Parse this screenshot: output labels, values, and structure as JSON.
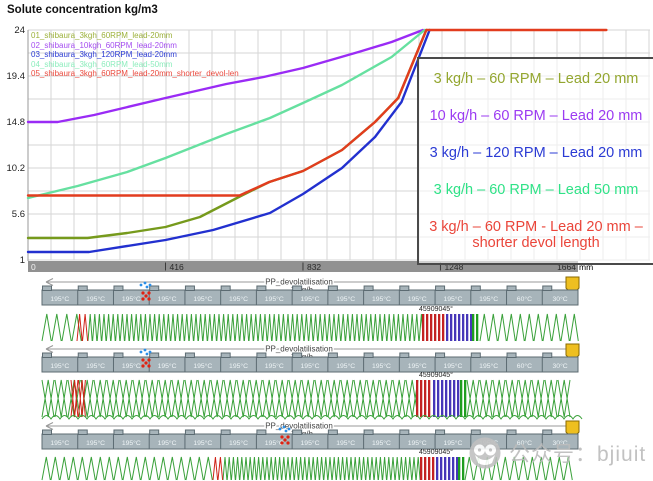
{
  "chart": {
    "title": "Solute concentration kg/m3",
    "y_tick_labels": [
      "24",
      "19.4",
      "14.8",
      "10.2",
      "5.6",
      "1"
    ],
    "x_tick_labels": [
      "0",
      "416",
      "832",
      "1248",
      "1664"
    ],
    "x_unit": "mm",
    "inline_legend": [
      {
        "label": "01_shibaura_3kgh_60RPM_lead-20mm",
        "color": "#9cb13a"
      },
      {
        "label": "02_shibaura_10kgh_60RPM_lead-20mm",
        "color": "#a44df0"
      },
      {
        "label": "03_shibaura_3kgh_120RPM_lead-20mm",
        "color": "#2b3bd4"
      },
      {
        "label": "04_shibaura_3kgh_60RPM_lead-50mm",
        "color": "#8dedbd"
      },
      {
        "label": "05_shibaura_3kgh_60RPM_lead-20mm_shorter_devol-len",
        "color": "#ea4a3e"
      }
    ],
    "legend_box_entries": [
      {
        "label": "3 kg/h – 60 RPM – Lead 20 mm",
        "color": "#93a62f"
      },
      {
        "label": "10 kg/h – 60 RPM – Lead 20 mm",
        "color": "#9b3bf2"
      },
      {
        "label": "3 kg/h – 120 RPM – Lead 20 mm",
        "color": "#2b3bd4"
      },
      {
        "label": "3 kg/h – 60 RPM – Lead 50 mm",
        "color": "#2fe287"
      },
      {
        "label": "3 kg/h – 60 RPM - Lead 20 mm – shorter devol length",
        "color": "#ea453a"
      }
    ],
    "chart_data": {
      "type": "line",
      "title": "Solute concentration kg/m3",
      "ylabel": "Solute concentration kg/m3",
      "xlabel": "",
      "x_unit": "mm",
      "xlim": [
        0,
        1780
      ],
      "ylim": [
        1,
        24
      ],
      "grid": true,
      "legend_position": "right-overlay-box",
      "series": [
        {
          "name": "01_shibaura_3kgh_60RPM_lead-20mm",
          "color": "#769a1c",
          "points": [
            [
              0,
              3.2
            ],
            [
              180,
              3.2
            ],
            [
              300,
              3.7
            ],
            [
              416,
              4.3
            ],
            [
              520,
              5.3
            ],
            [
              650,
              7.5
            ],
            [
              730,
              8.8
            ],
            [
              832,
              9.9
            ],
            [
              950,
              12.0
            ],
            [
              1050,
              14.8
            ],
            [
              1120,
              17.2
            ],
            [
              1205,
              24
            ]
          ]
        },
        {
          "name": "02_shibaura_10kgh_60RPM_lead-20mm",
          "color": "#9a2bf5",
          "points": [
            [
              0,
              14.8
            ],
            [
              90,
              14.8
            ],
            [
              200,
              15.5
            ],
            [
              416,
              17.2
            ],
            [
              600,
              18.6
            ],
            [
              713,
              19.3
            ],
            [
              832,
              20.2
            ],
            [
              1000,
              21.8
            ],
            [
              1100,
              22.8
            ],
            [
              1195,
              24
            ]
          ]
        },
        {
          "name": "03_shibaura_3kgh_120RPM_lead-20mm",
          "color": "#2230cf",
          "points": [
            [
              0,
              1.8
            ],
            [
              185,
              1.8
            ],
            [
              416,
              3.0
            ],
            [
              560,
              4.0
            ],
            [
              732,
              5.7
            ],
            [
              832,
              7.6
            ],
            [
              950,
              10.2
            ],
            [
              1050,
              13.3
            ],
            [
              1130,
              16.8
            ],
            [
              1215,
              24
            ]
          ]
        },
        {
          "name": "04_shibaura_3kgh_60RPM_lead-50mm",
          "color": "#66e0a0",
          "points": [
            [
              0,
              7.2
            ],
            [
              150,
              8.4
            ],
            [
              300,
              9.8
            ],
            [
              416,
              11.2
            ],
            [
              600,
              13.6
            ],
            [
              732,
              15.2
            ],
            [
              832,
              16.7
            ],
            [
              950,
              18.5
            ],
            [
              1100,
              21.3
            ],
            [
              1200,
              24
            ]
          ]
        },
        {
          "name": "05_shibaura_3kgh_60RPM_lead-20mm_shorter_devol-len",
          "color": "#e23c1e",
          "points": [
            [
              0,
              7.45
            ],
            [
              640,
              7.45
            ],
            [
              730,
              8.8
            ],
            [
              832,
              9.9
            ],
            [
              950,
              12.0
            ],
            [
              1050,
              14.8
            ],
            [
              1120,
              17.2
            ],
            [
              1205,
              24
            ],
            [
              1750,
              24
            ]
          ]
        }
      ]
    }
  },
  "diagrams": {
    "rows": [
      {
        "flow_label": "PP_devolatilisation",
        "rate_label": "3 kg/h",
        "kneading_label": "45909045°",
        "barrel_temps": [
          "195°C",
          "195°C",
          "195°C",
          "195°C",
          "195°C",
          "195°C",
          "195°C",
          "195°C",
          "195°C",
          "195°C",
          "195°C",
          "195°C",
          "195°C",
          "60°C",
          "30°C"
        ]
      },
      {
        "flow_label": "PP_devolatilisation",
        "rate_label": "3 kg/h",
        "kneading_label": "45909045°",
        "barrel_temps": [
          "195°C",
          "195°C",
          "195°C",
          "195°C",
          "195°C",
          "195°C",
          "195°C",
          "195°C",
          "195°C",
          "195°C",
          "195°C",
          "195°C",
          "195°C",
          "60°C",
          "30°C"
        ]
      },
      {
        "flow_label": "PP_devolatilisation",
        "rate_label": "3 kg/h",
        "kneading_label": "45909045°",
        "barrel_temps": [
          "195°C",
          "195°C",
          "195°C",
          "195°C",
          "195°C",
          "195°C",
          "195°C",
          "195°C",
          "195°C",
          "195°C",
          "195°C",
          "195°C",
          "195°C",
          "60°C",
          "30°C"
        ]
      }
    ]
  },
  "watermark": {
    "text": "公众号：bjiuit"
  }
}
